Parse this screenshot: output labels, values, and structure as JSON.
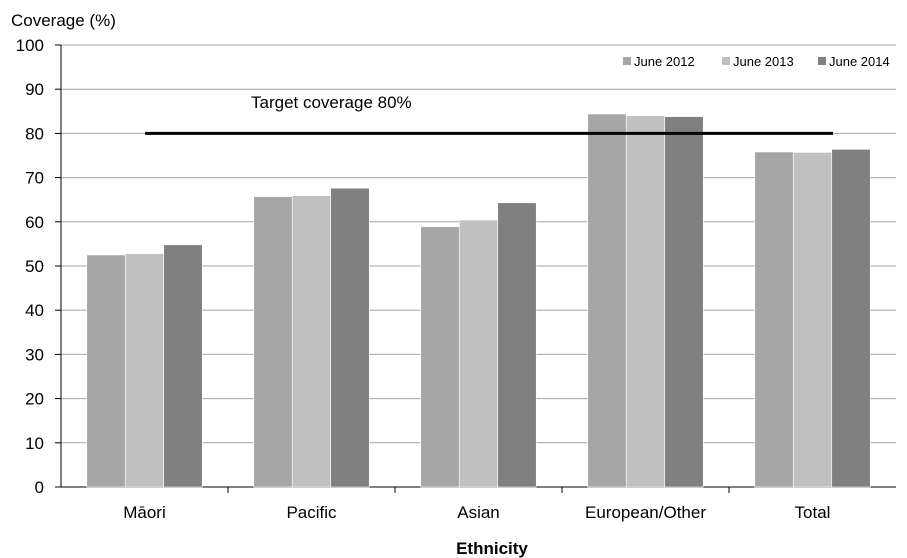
{
  "chart_data": {
    "type": "bar",
    "ylabel": "Coverage (%)",
    "xlabel": "Ethnicity",
    "ylim": [
      0,
      100
    ],
    "yticks": [
      0,
      10,
      20,
      30,
      40,
      50,
      60,
      70,
      80,
      90,
      100
    ],
    "grid": "horizontal",
    "legend_position": "top-right",
    "categories": [
      "Māori",
      "Pacific",
      "Asian",
      "European/Other",
      "Total"
    ],
    "series": [
      {
        "name": "June 2012",
        "color": "#a6a6a6",
        "values": [
          52.5,
          65.7,
          58.9,
          84.4,
          75.8
        ]
      },
      {
        "name": "June 2013",
        "color": "#c0c0c0",
        "values": [
          52.8,
          65.9,
          60.4,
          84.0,
          75.7
        ]
      },
      {
        "name": "June 2014",
        "color": "#808080",
        "values": [
          54.8,
          67.6,
          64.3,
          83.8,
          76.4
        ]
      }
    ],
    "target": {
      "value": 80,
      "label": "Target coverage 80%",
      "color": "#000000"
    }
  }
}
